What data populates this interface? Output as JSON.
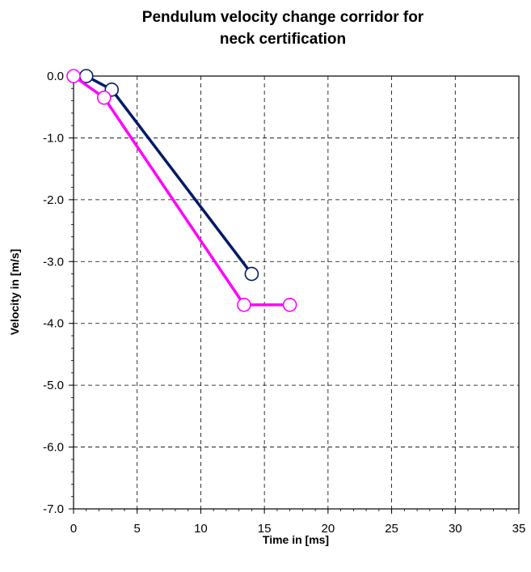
{
  "chart_data": {
    "type": "line",
    "title_lines": [
      "Pendulum velocity change corridor for",
      "neck certification"
    ],
    "xlabel": "Time in [ms]",
    "ylabel": "Velocity in [m/s]",
    "xlim": [
      0,
      35
    ],
    "ylim": [
      -7.0,
      0.0
    ],
    "x_ticks": [
      "0",
      "5",
      "10",
      "15",
      "20",
      "25",
      "30",
      "35"
    ],
    "y_ticks": [
      "0.0",
      "-1.0",
      "-2.0",
      "-3.0",
      "-4.0",
      "-5.0",
      "-6.0",
      "-7.0"
    ],
    "grid": true,
    "legend": "none",
    "series": [
      {
        "color": "#001a66",
        "points": [
          [
            1.0,
            0.0
          ],
          [
            3.0,
            -0.22
          ],
          [
            14.0,
            -3.2
          ]
        ]
      },
      {
        "color": "#ff00ff",
        "points": [
          [
            0.0,
            0.0
          ],
          [
            2.4,
            -0.35
          ],
          [
            13.4,
            -3.7
          ],
          [
            17.0,
            -3.7
          ]
        ]
      }
    ]
  }
}
